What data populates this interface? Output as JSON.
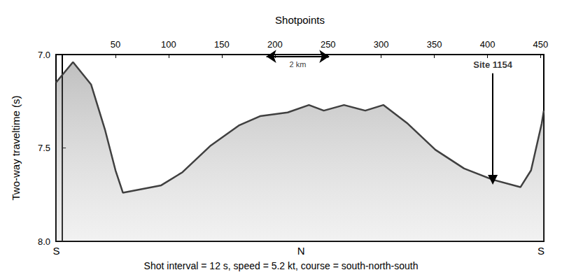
{
  "chart_data": {
    "type": "line",
    "x_label": "Shotpoints",
    "y_label": "Two-way traveltime (s)",
    "caption": "Shot interval = 12 s, speed = 5.2 kt, course = south-north-south",
    "x": [
      -6,
      10,
      27,
      40,
      50,
      57,
      75,
      93,
      113,
      139,
      166,
      186,
      212,
      232,
      246,
      265,
      285,
      302,
      325,
      351,
      378,
      405,
      431,
      441,
      451,
      453
    ],
    "values": [
      7.15,
      7.04,
      7.16,
      7.4,
      7.62,
      7.74,
      7.72,
      7.7,
      7.63,
      7.49,
      7.38,
      7.33,
      7.31,
      7.27,
      7.3,
      7.27,
      7.3,
      7.27,
      7.37,
      7.51,
      7.61,
      7.67,
      7.71,
      7.62,
      7.37,
      7.3
    ],
    "color": "#404040",
    "xlim": [
      -6,
      453
    ],
    "xticks": [
      50,
      100,
      150,
      200,
      250,
      300,
      350,
      400,
      450
    ],
    "ylim": [
      7,
      8
    ],
    "yticks": [
      {
        "value": 7,
        "label": "7.0"
      },
      {
        "value": 7.5,
        "label": "7.5"
      },
      {
        "value": 8,
        "label": "8.0"
      }
    ],
    "grid": false,
    "annotations": [
      {
        "text": "Site 1154",
        "x": 405,
        "y": 7.01,
        "arrow": [
          7.1,
          7.67
        ]
      }
    ],
    "scale_bar": {
      "label": "2 km",
      "x": [
        192,
        251
      ],
      "y": 7.01
    },
    "direction_labels": [
      {
        "text": "S",
        "x": -5
      },
      {
        "text": "N",
        "x": 225
      },
      {
        "text": "S",
        "x": 451
      }
    ]
  }
}
